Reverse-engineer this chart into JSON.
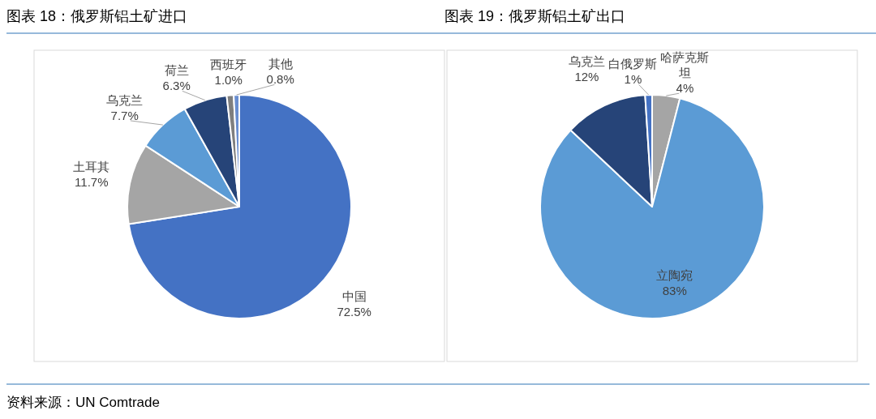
{
  "chart_data": [
    {
      "type": "pie",
      "title": "图表 18：俄罗斯铝土矿进口",
      "categories": [
        "中国",
        "土耳其",
        "乌克兰",
        "荷兰",
        "西班牙",
        "其他"
      ],
      "values": [
        72.5,
        11.7,
        7.7,
        6.3,
        1.0,
        0.8
      ],
      "colors": [
        "#4472c4",
        "#a5a5a5",
        "#5b9bd5",
        "#264478",
        "#7f7f7f",
        "#698ed0"
      ],
      "value_labels": [
        "72.5%",
        "11.7%",
        "7.7%",
        "6.3%",
        "1.0%",
        "0.8%"
      ],
      "annotations": [
        "资料来源：UN Comtrade"
      ]
    },
    {
      "type": "pie",
      "title": "图表 19：俄罗斯铝土矿出口",
      "categories": [
        "哈萨克斯坦",
        "立陶宛",
        "乌克兰",
        "白俄罗斯"
      ],
      "values": [
        4,
        83,
        12,
        1
      ],
      "colors": [
        "#a5a5a5",
        "#5b9bd5",
        "#264478",
        "#4472c4"
      ],
      "value_labels": [
        "4%",
        "83%",
        "12%",
        "1%"
      ]
    }
  ]
}
